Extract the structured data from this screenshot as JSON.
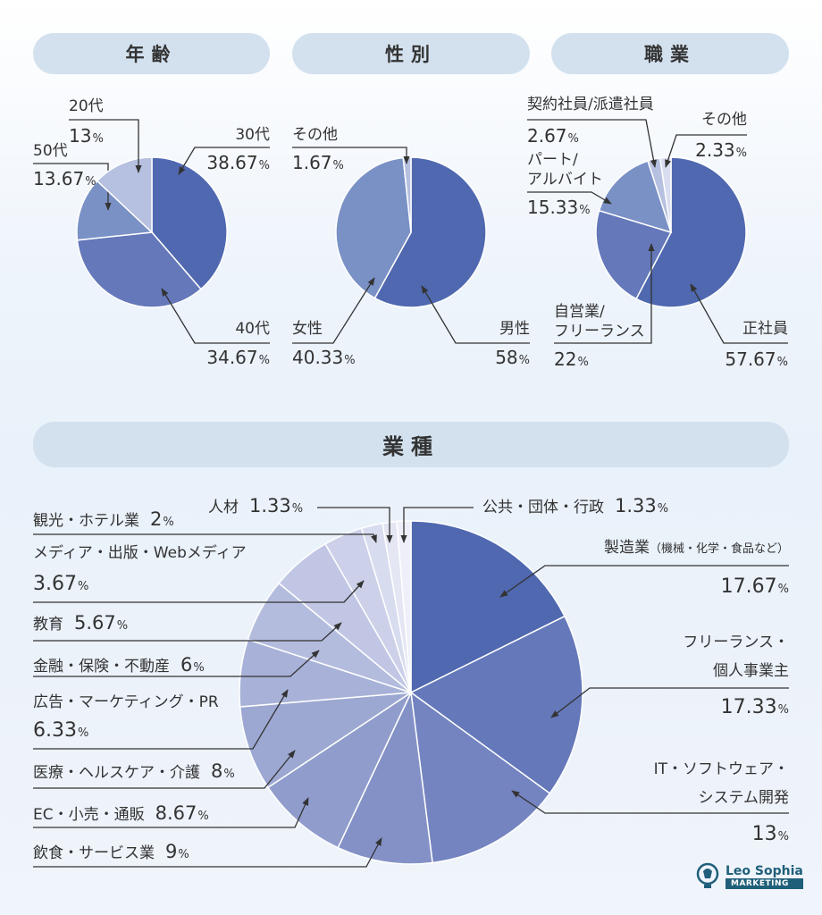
{
  "chart_data": [
    {
      "type": "pie",
      "title": "年齢",
      "unit": "%",
      "slices": [
        {
          "label": "30代",
          "value": 38.67
        },
        {
          "label": "40代",
          "value": 34.67
        },
        {
          "label": "50代",
          "value": 13.67
        },
        {
          "label": "20代",
          "value": 13
        }
      ],
      "colors": [
        "#4f68b0",
        "#6478ba",
        "#7a91c6",
        "#b6c0e0"
      ]
    },
    {
      "type": "pie",
      "title": "性別",
      "unit": "%",
      "slices": [
        {
          "label": "男性",
          "value": 58
        },
        {
          "label": "女性",
          "value": 40.33
        },
        {
          "label": "その他",
          "value": 1.67
        }
      ],
      "colors": [
        "#4f68b0",
        "#7a91c6",
        "#b6c0e0"
      ]
    },
    {
      "type": "pie",
      "title": "職業",
      "unit": "%",
      "slices": [
        {
          "label": "正社員",
          "value": 57.67
        },
        {
          "label": "自営業/\nフリーランス",
          "value": 22
        },
        {
          "label": "パート/\nアルバイト",
          "value": 15.33
        },
        {
          "label": "契約社員/派遣社員",
          "value": 2.67
        },
        {
          "label": "その他",
          "value": 2.33
        }
      ],
      "colors": [
        "#4f68b0",
        "#6478ba",
        "#7a91c6",
        "#b6c0e0",
        "#d9ddf0"
      ]
    },
    {
      "type": "pie",
      "title": "業種",
      "unit": "%",
      "slices": [
        {
          "label": "製造業",
          "note": "（機械・化学・食品など）",
          "value": 17.67
        },
        {
          "label": "フリーランス・\n個人事業主",
          "value": 17.33
        },
        {
          "label": "IT・ソフトウェア・\nシステム開発",
          "value": 13
        },
        {
          "label": "飲食・サービス業",
          "value": 9
        },
        {
          "label": "EC・小売・通販",
          "value": 8.67
        },
        {
          "label": "医療・ヘルスケア・介護",
          "value": 8
        },
        {
          "label": "広告・マーケティング・PR",
          "value": 6.33
        },
        {
          "label": "金融・保険・不動産",
          "value": 6
        },
        {
          "label": "教育",
          "value": 5.67
        },
        {
          "label": "メディア・出版・Webメディア",
          "value": 3.67
        },
        {
          "label": "観光・ホテル業",
          "value": 2
        },
        {
          "label": "人材",
          "value": 1.33
        },
        {
          "label": "公共・団体・行政",
          "value": 1.33
        }
      ],
      "colors": [
        "#4f68b0",
        "#6478ba",
        "#7484c0",
        "#8391c6",
        "#909dcc",
        "#9ca8d2",
        "#a8b2d8",
        "#b4bcde",
        "#c0c6e3",
        "#ccd1e9",
        "#d8dcef",
        "#e4e6f4",
        "#efeff9"
      ]
    }
  ],
  "logo": {
    "name": "Leo Sophia",
    "tag": "MARKETING"
  }
}
